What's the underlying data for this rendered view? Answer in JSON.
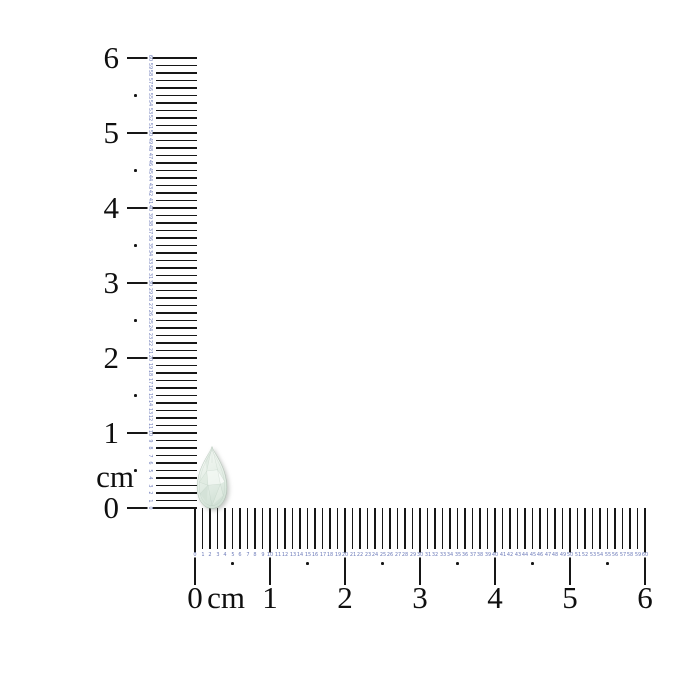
{
  "page": {
    "background_color": "#ffffff"
  },
  "rulers": {
    "unit": "cm",
    "mm_max": 60,
    "tick_color": "#161616",
    "mm_number_color": "#6e7cba",
    "label_color": "#0f0f0f",
    "mm_numbers": [
      "0",
      "1",
      "2",
      "3",
      "4",
      "5",
      "6",
      "7",
      "8",
      "9",
      "10",
      "11",
      "12",
      "13",
      "14",
      "15",
      "16",
      "17",
      "18",
      "19",
      "20",
      "21",
      "22",
      "23",
      "24",
      "25",
      "26",
      "27",
      "28",
      "29",
      "30",
      "31",
      "32",
      "33",
      "34",
      "35",
      "36",
      "37",
      "38",
      "39",
      "40",
      "41",
      "42",
      "43",
      "44",
      "45",
      "46",
      "47",
      "48",
      "49",
      "50",
      "51",
      "52",
      "53",
      "54",
      "55",
      "56",
      "57",
      "58",
      "59",
      "60"
    ],
    "vertical": {
      "orientation": "vertical",
      "unit_label": "cm",
      "cm_labels": [
        "0",
        "1",
        "2",
        "3",
        "4",
        "5",
        "6"
      ]
    },
    "horizontal": {
      "orientation": "horizontal",
      "unit_label": "cm",
      "cm_labels": [
        "0",
        "1",
        "2",
        "3",
        "4",
        "5",
        "6"
      ]
    }
  },
  "gem": {
    "description": "pear cut pale green-white faceted gemstone",
    "approx_length_mm": 8,
    "approx_width_mm": 4.5,
    "highlight_color": "#f8fbf8",
    "body_color": "#e9f1ea",
    "mid_color": "#dde9e0",
    "deep_color": "#d2e1d6",
    "facet_line_color": "#9fb5a4"
  }
}
